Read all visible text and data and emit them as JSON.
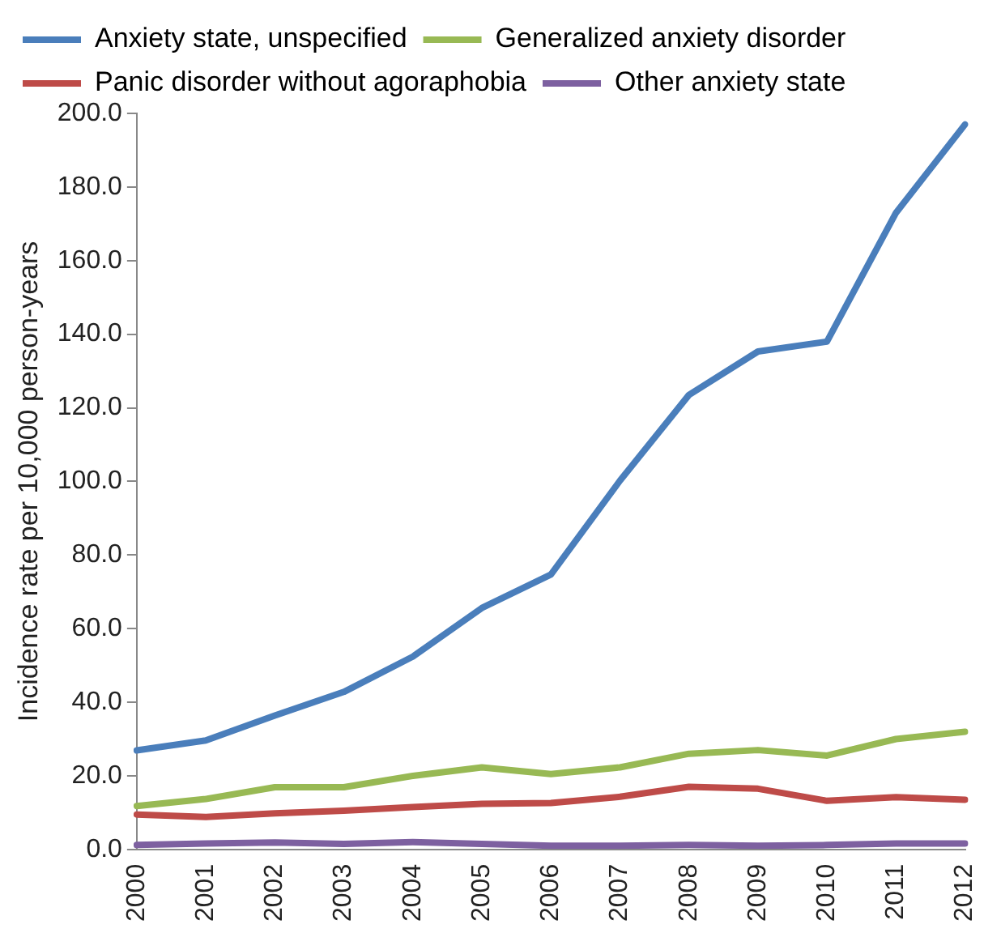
{
  "chart_data": {
    "type": "line",
    "ylabel": "Incidence rate per 10,000 person-years",
    "categories": [
      "2000",
      "2001",
      "2002",
      "2003",
      "2004",
      "2005",
      "2006",
      "2007",
      "2008",
      "2009",
      "2010",
      "2011",
      "2012"
    ],
    "series": [
      {
        "name": "Anxiety state, unspecified",
        "color": "#4a7ebb",
        "values": [
          26.9,
          29.6,
          36.4,
          42.8,
          52.4,
          65.6,
          74.7,
          100.2,
          123.5,
          135.3,
          138,
          173,
          197
        ]
      },
      {
        "name": "Generalized anxiety disorder",
        "color": "#98b954",
        "values": [
          11.8,
          13.7,
          16.9,
          16.9,
          20,
          22.3,
          20.5,
          22.3,
          26,
          27,
          25.5,
          30,
          32
        ]
      },
      {
        "name": "Panic disorder without agoraphobia",
        "color": "#be4b48",
        "values": [
          9.5,
          8.8,
          9.8,
          10.5,
          11.5,
          12.4,
          12.6,
          14.3,
          17,
          16.5,
          13.2,
          14.2,
          13.5
        ]
      },
      {
        "name": "Other anxiety state",
        "color": "#7d60a0",
        "values": [
          1.2,
          1.6,
          1.9,
          1.5,
          2,
          1.5,
          1,
          1,
          1.2,
          1,
          1.2,
          1.6,
          1.6
        ]
      }
    ],
    "ylim": [
      0,
      200
    ],
    "yticks": [
      {
        "value": 0,
        "label": "0.0"
      },
      {
        "value": 20,
        "label": "20.0"
      },
      {
        "value": 40,
        "label": "40.0"
      },
      {
        "value": 60,
        "label": "60.0"
      },
      {
        "value": 80,
        "label": "80.0"
      },
      {
        "value": 100,
        "label": "100.0"
      },
      {
        "value": 120,
        "label": "120.0"
      },
      {
        "value": 140,
        "label": "140.0"
      },
      {
        "value": 160,
        "label": "160.0"
      },
      {
        "value": 180,
        "label": "180.0"
      },
      {
        "value": 200,
        "label": "200.0"
      }
    ],
    "grid": false,
    "legend": "top",
    "marker": "none",
    "line_style": "solid"
  }
}
